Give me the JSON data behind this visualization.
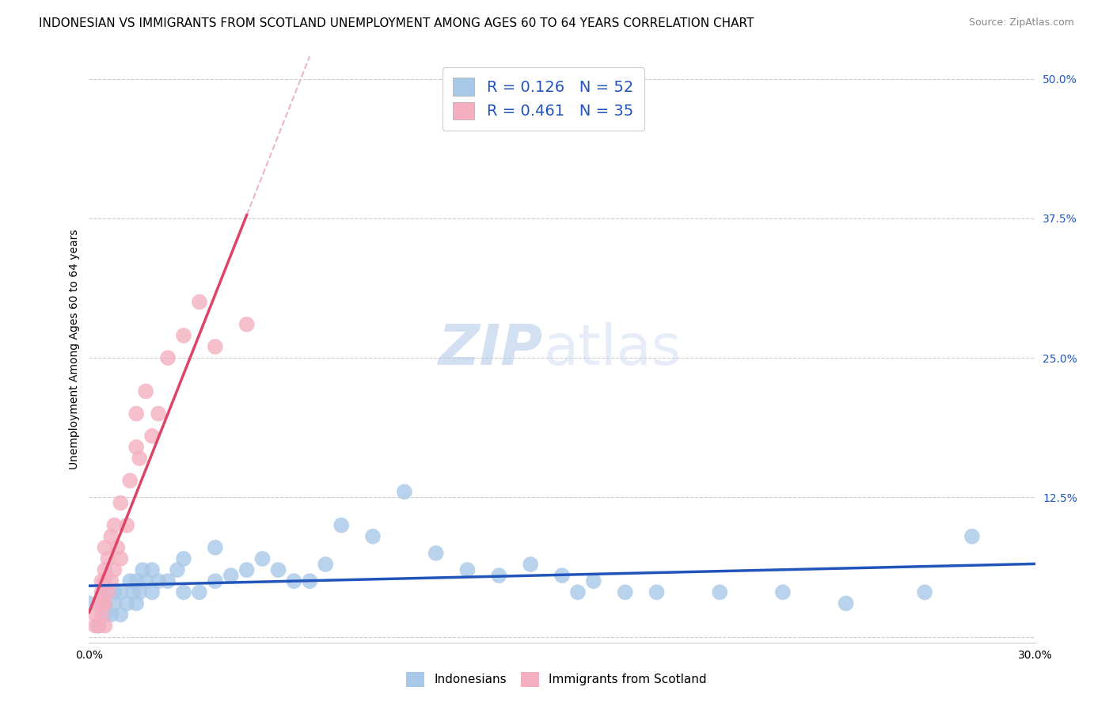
{
  "title": "INDONESIAN VS IMMIGRANTS FROM SCOTLAND UNEMPLOYMENT AMONG AGES 60 TO 64 YEARS CORRELATION CHART",
  "source": "Source: ZipAtlas.com",
  "ylabel": "Unemployment Among Ages 60 to 64 years",
  "xlim": [
    0.0,
    0.3
  ],
  "ylim": [
    -0.005,
    0.52
  ],
  "blue_scatter_color": "#a8c8e8",
  "pink_scatter_color": "#f4afc0",
  "blue_line_color": "#2255bb",
  "pink_line_color": "#dd4466",
  "pink_dash_color": "#e8b0bc",
  "legend_R_blue": "0.126",
  "legend_N_blue": "52",
  "legend_R_pink": "0.461",
  "legend_N_pink": "35",
  "watermark_zip": "ZIP",
  "watermark_atlas": "atlas",
  "indonesian_x": [
    0.0,
    0.003,
    0.005,
    0.005,
    0.005,
    0.007,
    0.008,
    0.008,
    0.01,
    0.01,
    0.012,
    0.013,
    0.014,
    0.015,
    0.015,
    0.016,
    0.017,
    0.018,
    0.02,
    0.02,
    0.022,
    0.025,
    0.028,
    0.03,
    0.03,
    0.035,
    0.04,
    0.04,
    0.045,
    0.05,
    0.055,
    0.06,
    0.065,
    0.07,
    0.075,
    0.08,
    0.09,
    0.1,
    0.11,
    0.12,
    0.13,
    0.14,
    0.15,
    0.155,
    0.16,
    0.17,
    0.18,
    0.2,
    0.22,
    0.24,
    0.265,
    0.28
  ],
  "indonesian_y": [
    0.03,
    0.01,
    0.02,
    0.03,
    0.04,
    0.02,
    0.03,
    0.04,
    0.02,
    0.04,
    0.03,
    0.05,
    0.04,
    0.03,
    0.05,
    0.04,
    0.06,
    0.05,
    0.04,
    0.06,
    0.05,
    0.05,
    0.06,
    0.04,
    0.07,
    0.04,
    0.05,
    0.08,
    0.055,
    0.06,
    0.07,
    0.06,
    0.05,
    0.05,
    0.065,
    0.1,
    0.09,
    0.13,
    0.075,
    0.06,
    0.055,
    0.065,
    0.055,
    0.04,
    0.05,
    0.04,
    0.04,
    0.04,
    0.04,
    0.03,
    0.04,
    0.09
  ],
  "scotland_x": [
    0.002,
    0.002,
    0.003,
    0.003,
    0.004,
    0.004,
    0.004,
    0.004,
    0.005,
    0.005,
    0.005,
    0.005,
    0.005,
    0.006,
    0.006,
    0.007,
    0.007,
    0.008,
    0.008,
    0.009,
    0.01,
    0.01,
    0.012,
    0.013,
    0.015,
    0.015,
    0.016,
    0.018,
    0.02,
    0.022,
    0.025,
    0.03,
    0.035,
    0.04,
    0.05
  ],
  "scotland_y": [
    0.01,
    0.02,
    0.01,
    0.03,
    0.02,
    0.03,
    0.04,
    0.05,
    0.01,
    0.03,
    0.05,
    0.06,
    0.08,
    0.04,
    0.07,
    0.05,
    0.09,
    0.06,
    0.1,
    0.08,
    0.07,
    0.12,
    0.1,
    0.14,
    0.17,
    0.2,
    0.16,
    0.22,
    0.18,
    0.2,
    0.25,
    0.27,
    0.3,
    0.26,
    0.28
  ],
  "title_fontsize": 11,
  "source_fontsize": 9,
  "axis_label_fontsize": 10,
  "tick_fontsize": 10,
  "legend_fontsize": 14
}
